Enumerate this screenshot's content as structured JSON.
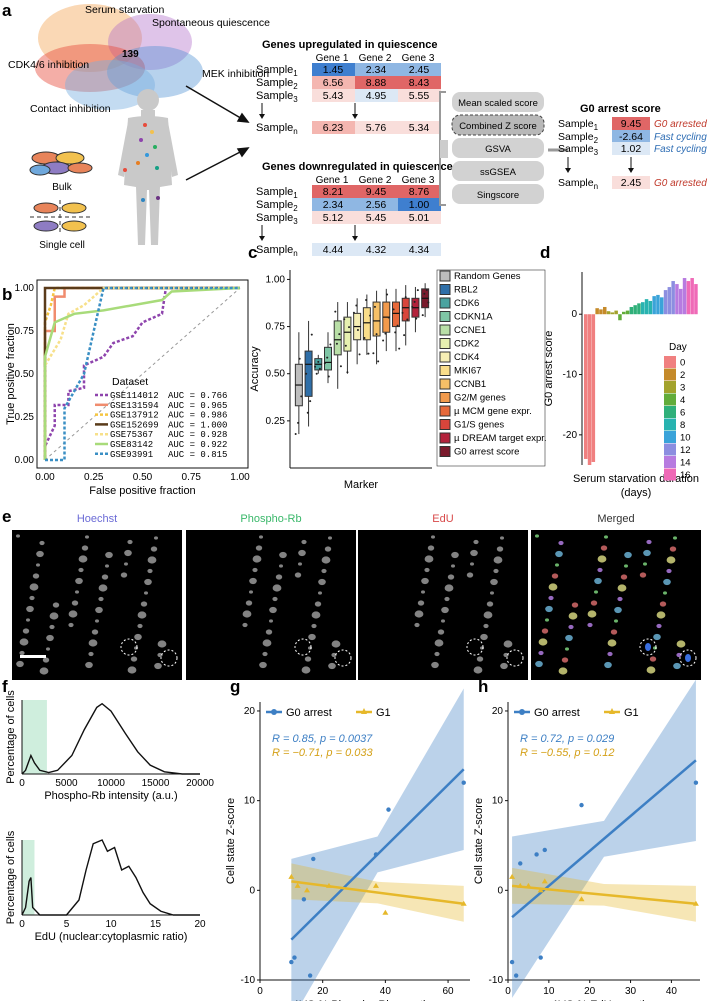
{
  "panel_labels": {
    "a": "a",
    "b": "b",
    "c": "c",
    "d": "d",
    "e": "e",
    "f": "f",
    "g": "g",
    "h": "h"
  },
  "panel_a": {
    "venn": {
      "serum": "Serum starvation",
      "spont": "Spontaneous quiescence",
      "cdk": "CDK4/6 inhibition",
      "mek": "MEK inhibition",
      "contact": "Contact inhibition",
      "center": "139"
    },
    "bulk_label": "Bulk",
    "single_label": "Single cell",
    "up_title": "Genes upregulated in quiescence",
    "down_title": "Genes downregulated in quiescence",
    "genes": [
      "Gene 1",
      "Gene 2",
      "Gene 3"
    ],
    "sample_prefix": "Sample",
    "sample_subs": [
      "1",
      "2",
      "3",
      "n"
    ],
    "up_values": [
      [
        "1.45",
        "2.34",
        "2.45"
      ],
      [
        "6.56",
        "8.88",
        "8.43"
      ],
      [
        "5.43",
        "4.95",
        "5.55"
      ],
      [
        "6.23",
        "5.76",
        "5.34"
      ]
    ],
    "down_values": [
      [
        "8.21",
        "9.45",
        "8.76"
      ],
      [
        "2.34",
        "2.56",
        "1.00"
      ],
      [
        "5.12",
        "5.45",
        "5.01"
      ],
      [
        "4.44",
        "4.32",
        "4.34"
      ]
    ],
    "methods": [
      "Mean scaled score",
      "Combined Z score",
      "GSVA",
      "ssGSEA",
      "Singscore"
    ],
    "g0_title": "G0 arrest score",
    "g0_values": [
      "9.45",
      "-2.64",
      "1.02",
      "2.45"
    ],
    "g0_status": [
      "G0 arrested",
      "Fast cycling",
      "Fast cycling",
      "G0 arrested"
    ],
    "colors": {
      "red": "#c0392b",
      "blue": "#2e6db4"
    }
  },
  "panel_b": {
    "chart_data": {
      "type": "line",
      "title": "",
      "xlabel": "False positive fraction",
      "ylabel": "True positive fraction",
      "xlim": [
        0,
        1
      ],
      "ylim": [
        0,
        1
      ],
      "x_ticks": [
        "0.00",
        "0.25",
        "0.50",
        "0.75",
        "1.00"
      ],
      "y_ticks": [
        "0.00",
        "0.25",
        "0.50",
        "0.75",
        "1.00"
      ],
      "legend_title": "Dataset",
      "series": [
        {
          "name": "GSE114012",
          "auc": "AUC = 0.766",
          "color": "#8e44ad",
          "points": [
            [
              0,
              0
            ],
            [
              0,
              0.08
            ],
            [
              0.05,
              0.2
            ],
            [
              0.05,
              0.32
            ],
            [
              0.12,
              0.32
            ],
            [
              0.12,
              0.4
            ],
            [
              0.2,
              0.42
            ],
            [
              0.2,
              0.55
            ],
            [
              0.3,
              0.6
            ],
            [
              0.35,
              0.68
            ],
            [
              0.45,
              0.72
            ],
            [
              0.5,
              0.8
            ],
            [
              0.6,
              0.85
            ],
            [
              0.62,
              1
            ],
            [
              1,
              1
            ]
          ]
        },
        {
          "name": "GSE131594",
          "auc": "AUC = 0.965",
          "color": "#f08c6e",
          "points": [
            [
              0,
              0
            ],
            [
              0,
              0.75
            ],
            [
              0.05,
              0.75
            ],
            [
              0.05,
              0.95
            ],
            [
              0.1,
              0.95
            ],
            [
              0.1,
              1
            ],
            [
              1,
              1
            ]
          ]
        },
        {
          "name": "GSE137912",
          "auc": "AUC = 0.986",
          "color": "#f5c542",
          "points": [
            [
              0,
              0
            ],
            [
              0,
              0.8
            ],
            [
              0.03,
              0.9
            ],
            [
              0.05,
              1
            ],
            [
              1,
              1
            ]
          ]
        },
        {
          "name": "GSE152699",
          "auc": "AUC = 1.000",
          "color": "#5a3b1a",
          "points": [
            [
              0,
              0
            ],
            [
              0,
              1
            ],
            [
              1,
              1
            ]
          ]
        },
        {
          "name": "GSE75367",
          "auc": "AUC = 0.928",
          "color": "#f7e08a",
          "points": [
            [
              0,
              0
            ],
            [
              0,
              0.55
            ],
            [
              0.08,
              0.7
            ],
            [
              0.12,
              0.85
            ],
            [
              0.2,
              0.9
            ],
            [
              0.3,
              1
            ],
            [
              1,
              1
            ]
          ]
        },
        {
          "name": "GSE83142",
          "auc": "AUC = 0.922",
          "color": "#a8db7a",
          "points": [
            [
              0,
              0
            ],
            [
              0,
              0.6
            ],
            [
              0.05,
              0.8
            ],
            [
              0.15,
              0.85
            ],
            [
              0.3,
              0.87
            ],
            [
              0.6,
              0.93
            ],
            [
              0.65,
              0.98
            ],
            [
              1,
              1
            ]
          ]
        },
        {
          "name": "GSE93991",
          "auc": "AUC = 0.815",
          "color": "#3a8fc4",
          "points": [
            [
              0,
              0
            ],
            [
              0.1,
              0
            ],
            [
              0.1,
              0.3
            ],
            [
              0.2,
              0.5
            ],
            [
              0.25,
              0.75
            ],
            [
              0.3,
              1
            ],
            [
              1,
              1
            ]
          ]
        }
      ]
    }
  },
  "panel_c": {
    "chart_data": {
      "type": "box",
      "xlabel": "Marker",
      "ylabel": "Accuracy",
      "ylim": [
        0,
        1.05
      ],
      "y_ticks": [
        "0.25",
        "0.50",
        "0.75",
        "1.00"
      ],
      "markers": [
        {
          "name": "Random Genes",
          "color": "#bdbdbd",
          "q1": 0.33,
          "med": 0.44,
          "q3": 0.55,
          "lo": 0.18,
          "hi": 0.72
        },
        {
          "name": "RBL2",
          "color": "#2f6fa8",
          "q1": 0.38,
          "med": 0.55,
          "q3": 0.62,
          "lo": 0.22,
          "hi": 0.78
        },
        {
          "name": "CDK6",
          "color": "#4aa3a0",
          "q1": 0.52,
          "med": 0.55,
          "q3": 0.58,
          "lo": 0.5,
          "hi": 0.6
        },
        {
          "name": "CDKN1A",
          "color": "#7fc6a6",
          "q1": 0.52,
          "med": 0.56,
          "q3": 0.64,
          "lo": 0.45,
          "hi": 0.72
        },
        {
          "name": "CCNE1",
          "color": "#b9dfa7",
          "q1": 0.6,
          "med": 0.68,
          "q3": 0.78,
          "lo": 0.42,
          "hi": 0.88
        },
        {
          "name": "CDK2",
          "color": "#e6f0b0",
          "q1": 0.62,
          "med": 0.72,
          "q3": 0.8,
          "lo": 0.5,
          "hi": 0.88
        },
        {
          "name": "CDK4",
          "color": "#f6eeb4",
          "q1": 0.68,
          "med": 0.75,
          "q3": 0.82,
          "lo": 0.55,
          "hi": 0.9
        },
        {
          "name": "MKI67",
          "color": "#f9dd8a",
          "q1": 0.68,
          "med": 0.77,
          "q3": 0.85,
          "lo": 0.6,
          "hi": 0.92
        },
        {
          "name": "CCNB1",
          "color": "#f6c067",
          "q1": 0.7,
          "med": 0.78,
          "q3": 0.88,
          "lo": 0.55,
          "hi": 0.94
        },
        {
          "name": "G2/M genes",
          "color": "#f29a4c",
          "q1": 0.72,
          "med": 0.8,
          "q3": 0.88,
          "lo": 0.62,
          "hi": 0.95
        },
        {
          "name": "µ MCM gene expr.",
          "color": "#e7693a",
          "q1": 0.75,
          "med": 0.82,
          "q3": 0.88,
          "lo": 0.62,
          "hi": 0.95
        },
        {
          "name": "G1/S genes",
          "color": "#d9453b",
          "q1": 0.78,
          "med": 0.85,
          "q3": 0.9,
          "lo": 0.65,
          "hi": 0.97
        },
        {
          "name": "µ DREAM target expr.",
          "color": "#b3223b",
          "q1": 0.8,
          "med": 0.85,
          "q3": 0.9,
          "lo": 0.72,
          "hi": 0.96
        },
        {
          "name": "G0 arrest score",
          "color": "#7a1a2c",
          "q1": 0.85,
          "med": 0.9,
          "q3": 0.95,
          "lo": 0.8,
          "hi": 0.98
        }
      ]
    }
  },
  "panel_d": {
    "chart_data": {
      "type": "bar",
      "xlabel": "Serum starvation duration (days)",
      "ylabel": "G0 arrest score",
      "ylim": [
        -25,
        7
      ],
      "y_ticks": [
        "0",
        "-10",
        "-20"
      ],
      "legend_title": "Day",
      "days": [
        {
          "day": "0",
          "color": "#f08080",
          "values": [
            -24,
            -25,
            -24.5
          ]
        },
        {
          "day": "2",
          "color": "#c58a2a",
          "values": [
            1,
            0.8,
            1.2
          ]
        },
        {
          "day": "3",
          "color": "#a3a22c",
          "values": [
            0.5,
            0.3,
            0.6
          ]
        },
        {
          "day": "4",
          "color": "#62ac3a",
          "values": [
            -1,
            0.4,
            0.6
          ]
        },
        {
          "day": "6",
          "color": "#2fb07a",
          "values": [
            1.2,
            1.5,
            1.8
          ]
        },
        {
          "day": "8",
          "color": "#28b3b0",
          "values": [
            2,
            2.5,
            2.2
          ]
        },
        {
          "day": "10",
          "color": "#3aa3d9",
          "values": [
            3,
            3.2,
            2.8
          ]
        },
        {
          "day": "12",
          "color": "#8c8ee0",
          "values": [
            4,
            4.5,
            5.5
          ]
        },
        {
          "day": "14",
          "color": "#b77be0",
          "values": [
            5,
            4.2,
            6
          ]
        },
        {
          "day": "16",
          "color": "#ef6ab7",
          "values": [
            5.5,
            6,
            5
          ]
        }
      ]
    }
  },
  "panel_e": {
    "channels": [
      "Hoechst",
      "Phospho-Rb",
      "EdU",
      "Merged"
    ],
    "channel_colors": [
      "#6b6bd6",
      "#3ab86a",
      "#d84a4a",
      "#333333"
    ]
  },
  "panel_f": {
    "top": {
      "xlabel": "Phospho-Rb intensity (a.u.)",
      "ylabel": "Percentage of cells",
      "x_ticks": [
        "0",
        "5000",
        "10000",
        "15000",
        "20000"
      ]
    },
    "bottom": {
      "xlabel": "EdU (nuclear:cytoplasmic ratio)",
      "ylabel": "Percentage of cells",
      "x_ticks": [
        "0",
        "5",
        "10",
        "15",
        "20"
      ]
    }
  },
  "panel_g": {
    "chart_data": {
      "type": "scatter",
      "xlabel": "AVG % Phospho-Rb negative",
      "ylabel": "Cell state Z-score",
      "xlim": [
        0,
        67
      ],
      "ylim": [
        -10,
        21
      ],
      "x_ticks": [
        "0",
        "20",
        "40",
        "60"
      ],
      "y_ticks": [
        "-10",
        "0",
        "10",
        "20"
      ],
      "legend": [
        "G0 arrest",
        "G1"
      ],
      "stats_g0": "R = 0.85, p = 0.0037",
      "stats_g1": "R = −0.71, p = 0.033",
      "series": [
        {
          "name": "G0 arrest",
          "color": "#3d7fc4",
          "points": [
            [
              10,
              -8
            ],
            [
              11,
              -7.5
            ],
            [
              14,
              -1
            ],
            [
              16,
              -9.5
            ],
            [
              17,
              3.5
            ],
            [
              37,
              4
            ],
            [
              41,
              9
            ],
            [
              65,
              12
            ]
          ],
          "fit": [
            [
              10,
              -5.5
            ],
            [
              65,
              13.5
            ]
          ]
        },
        {
          "name": "G1",
          "color": "#e6b82a",
          "points": [
            [
              10,
              1.5
            ],
            [
              12,
              0.5
            ],
            [
              15,
              0
            ],
            [
              22,
              0.5
            ],
            [
              37,
              0.5
            ],
            [
              40,
              -2.5
            ],
            [
              65,
              -1.5
            ]
          ],
          "fit": [
            [
              10,
              1
            ],
            [
              65,
              -1.5
            ]
          ]
        }
      ]
    }
  },
  "panel_h": {
    "chart_data": {
      "type": "scatter",
      "xlabel": "AVG % EdU negative",
      "ylabel": "Cell state Z-score",
      "xlim": [
        0,
        47
      ],
      "ylim": [
        -10,
        21
      ],
      "x_ticks": [
        "0",
        "10",
        "20",
        "30",
        "40"
      ],
      "y_ticks": [
        "-10",
        "0",
        "10",
        "20"
      ],
      "legend": [
        "G0 arrest",
        "G1"
      ],
      "stats_g0": "R = 0.72, p = 0.029",
      "stats_g1": "R = −0.55, p = 0.12",
      "series": [
        {
          "name": "G0 arrest",
          "color": "#3d7fc4",
          "points": [
            [
              1,
              -8
            ],
            [
              2,
              -9.5
            ],
            [
              3,
              3
            ],
            [
              7,
              4
            ],
            [
              8,
              -7.5
            ],
            [
              9,
              4.5
            ],
            [
              18,
              9.5
            ],
            [
              46,
              12
            ]
          ],
          "fit": [
            [
              1,
              -3
            ],
            [
              46,
              14.5
            ]
          ]
        },
        {
          "name": "G1",
          "color": "#e6b82a",
          "points": [
            [
              1,
              1.5
            ],
            [
              3,
              0.5
            ],
            [
              5,
              0.5
            ],
            [
              8,
              0
            ],
            [
              9,
              1
            ],
            [
              18,
              -1
            ],
            [
              46,
              -1.5
            ]
          ],
          "fit": [
            [
              1,
              0.5
            ],
            [
              46,
              -1.5
            ]
          ]
        }
      ]
    }
  }
}
